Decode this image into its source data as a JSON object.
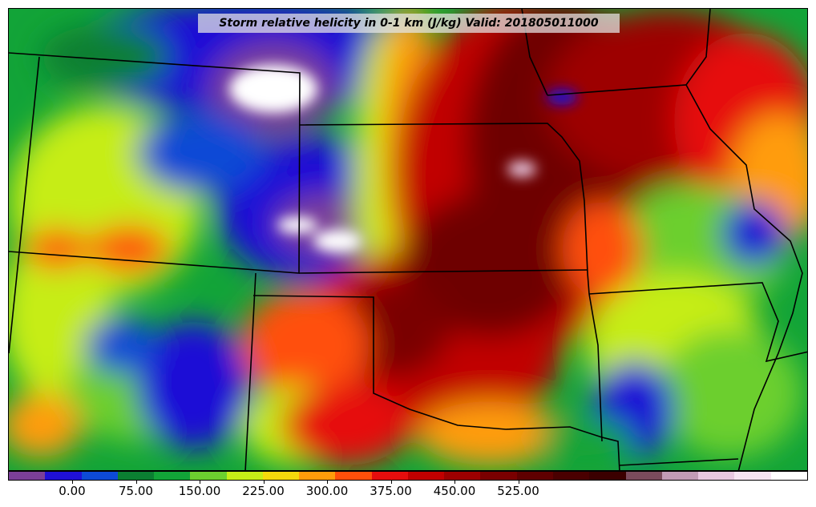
{
  "title": "Storm relative helicity in 0-1 km (J/kg) Valid: 201805011000",
  "colorbar": {
    "tick_labels": [
      "0.00",
      "75.00",
      "150.00",
      "225.00",
      "300.00",
      "375.00",
      "450.00",
      "525.00"
    ],
    "colors": [
      "#7b3f98",
      "#1f10d6",
      "#0d4ad6",
      "#0b7f32",
      "#12a438",
      "#6ccf2f",
      "#c6ed17",
      "#f4d90c",
      "#ff9c0a",
      "#ff4f0a",
      "#e60d0d",
      "#c10000",
      "#9d0000",
      "#7a0000",
      "#5f0000",
      "#4a0000",
      "#3b0000",
      "#7a4b5c",
      "#c29bb6",
      "#e8c7e0",
      "#f6e4f2",
      "#ffffff"
    ]
  },
  "legend_colors": {
    "low_purple": "#7b3f98",
    "blue": "#1f10d6",
    "green": "#12a438",
    "yellow": "#c6ed17",
    "orange": "#ff9c0a",
    "red": "#e60d0d",
    "dark_red": "#6e0000",
    "white": "#ffffff"
  }
}
